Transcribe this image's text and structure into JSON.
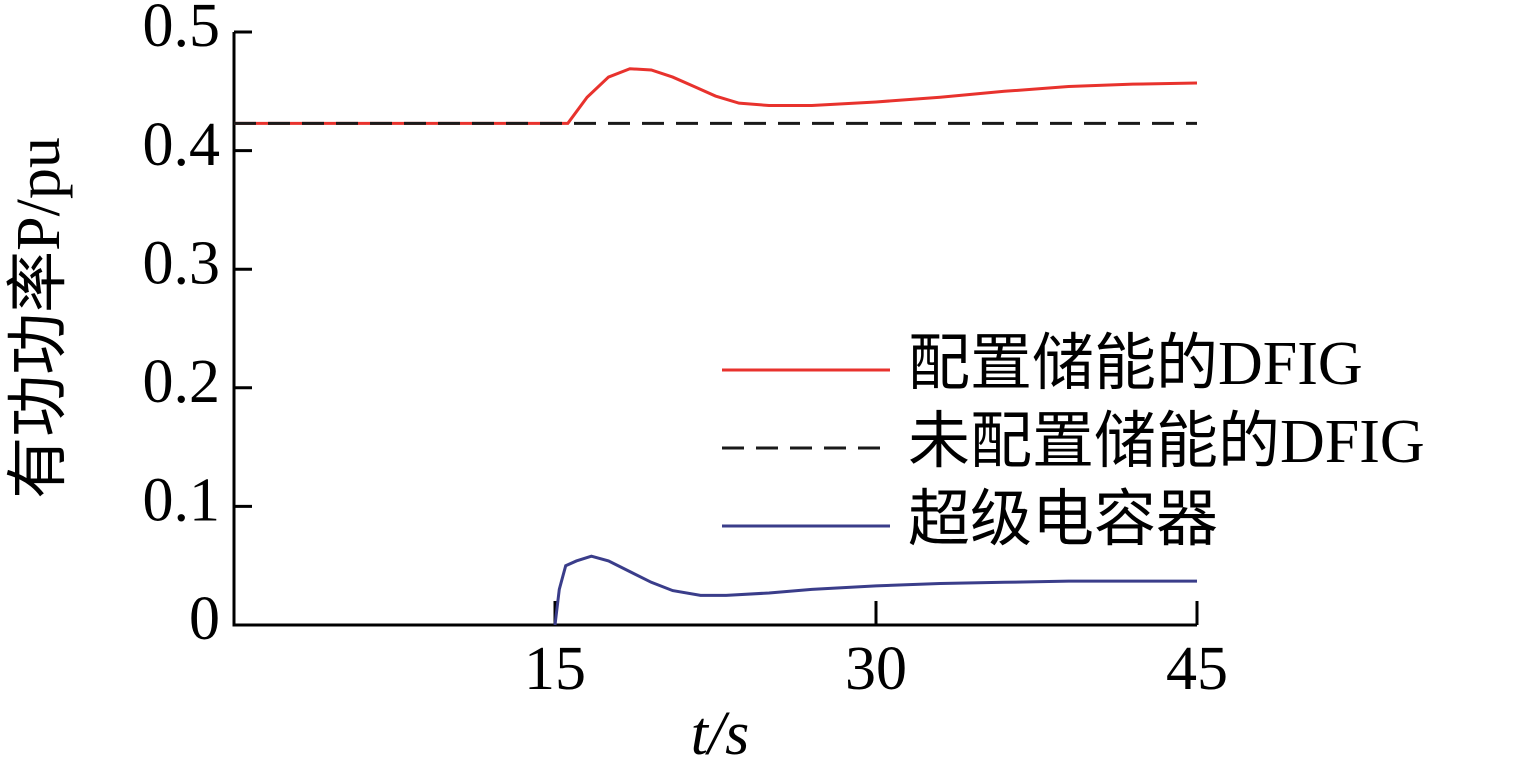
{
  "chart_data": {
    "type": "line",
    "xlabel": "t/s",
    "ylabel": "有功功率P/pu",
    "xlim": [
      0,
      45
    ],
    "xticks": [
      15,
      30,
      45
    ],
    "ylim": [
      0,
      0.5
    ],
    "yticks": [
      0,
      0.1,
      0.2,
      0.3,
      0.4,
      0.5
    ],
    "legend": "right",
    "series": [
      {
        "name": "配置储能的DFIG",
        "color": "#e8322d",
        "dash": false,
        "x": [
          0,
          15.6,
          16.5,
          17.5,
          18.5,
          19.5,
          20.5,
          21.5,
          22.5,
          23.6,
          25,
          27,
          30,
          33,
          36,
          39,
          42,
          45
        ],
        "values": [
          0.423,
          0.423,
          0.445,
          0.462,
          0.469,
          0.468,
          0.462,
          0.454,
          0.446,
          0.44,
          0.438,
          0.438,
          0.441,
          0.445,
          0.45,
          0.454,
          0.456,
          0.457
        ]
      },
      {
        "name": "未配置储能的DFIG",
        "color": "#1a1a1a",
        "dash": true,
        "x": [
          0,
          45
        ],
        "values": [
          0.423,
          0.423
        ]
      },
      {
        "name": "超级电容器",
        "color": "#3a3d8a",
        "dash": false,
        "x": [
          15,
          15.2,
          15.5,
          16,
          16.7,
          17.5,
          18.5,
          19.5,
          20.5,
          21.8,
          23,
          25,
          27,
          30,
          33,
          36,
          39,
          42,
          45
        ],
        "values": [
          0,
          0.03,
          0.05,
          0.054,
          0.058,
          0.054,
          0.045,
          0.036,
          0.029,
          0.025,
          0.025,
          0.027,
          0.03,
          0.033,
          0.035,
          0.036,
          0.037,
          0.037,
          0.037
        ]
      }
    ]
  }
}
